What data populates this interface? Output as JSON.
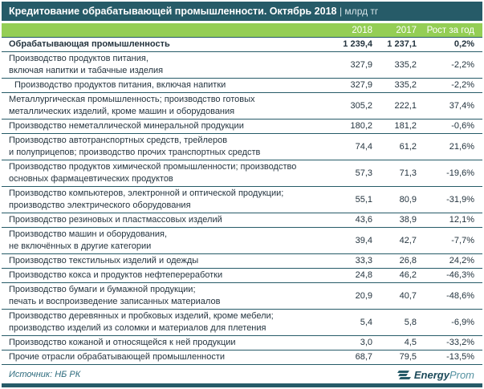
{
  "header": {
    "title": "Кредитование обрабатывающей промышленности. Октябрь 2018",
    "unit_suffix": "|  млрд тг"
  },
  "chart_data": {
    "type": "table",
    "title": "Кредитование обрабатывающей промышленности. Октябрь 2018",
    "unit": "млрд тг",
    "columns": [
      "2018",
      "2017",
      "Рост за год"
    ],
    "rows": [
      {
        "name": "Обрабатывающая промышленность",
        "bold": true,
        "indent": false,
        "v2018": "1 239,4",
        "v2017": "1 237,1",
        "growth": "0,2%"
      },
      {
        "name": "Производство продуктов питания,\nвключая напитки и табачные изделия",
        "bold": false,
        "indent": false,
        "v2018": "327,9",
        "v2017": "335,2",
        "growth": "-2,2%"
      },
      {
        "name": "Производство продуктов питания, включая напитки",
        "bold": false,
        "indent": true,
        "v2018": "327,9",
        "v2017": "335,2",
        "growth": "-2,2%"
      },
      {
        "name": "Металлургическая промышленность; производство готовых\nметаллических изделий, кроме машин и оборудования",
        "bold": false,
        "indent": false,
        "v2018": "305,2",
        "v2017": "222,1",
        "growth": "37,4%"
      },
      {
        "name": "Производство неметаллической минеральной продукции",
        "bold": false,
        "indent": false,
        "v2018": "180,2",
        "v2017": "181,2",
        "growth": "-0,6%"
      },
      {
        "name": "Производство автотранспортных средств, трейлеров\nи полуприцепов; производство прочих транспортных средств",
        "bold": false,
        "indent": false,
        "v2018": "74,4",
        "v2017": "61,2",
        "growth": "21,6%"
      },
      {
        "name": "Производство продуктов химической промышленности; производство\nосновных фармацевтических продуктов",
        "bold": false,
        "indent": false,
        "v2018": "57,3",
        "v2017": "71,3",
        "growth": "-19,6%"
      },
      {
        "name": "Производство компьютеров, электронной и оптической продукции;\nпроизводство электрического оборудования",
        "bold": false,
        "indent": false,
        "v2018": "55,1",
        "v2017": "80,9",
        "growth": "-31,9%"
      },
      {
        "name": "Производство резиновых и пластмассовых изделий",
        "bold": false,
        "indent": false,
        "v2018": "43,6",
        "v2017": "38,9",
        "growth": "12,1%"
      },
      {
        "name": "Производство машин и оборудования,\nне включённых в другие категории",
        "bold": false,
        "indent": false,
        "v2018": "39,4",
        "v2017": "42,7",
        "growth": "-7,7%"
      },
      {
        "name": "Производство текстильных изделий и одежды",
        "bold": false,
        "indent": false,
        "v2018": "33,3",
        "v2017": "26,8",
        "growth": "24,2%"
      },
      {
        "name": "Производство кокса и продуктов нефтепереработки",
        "bold": false,
        "indent": false,
        "v2018": "24,8",
        "v2017": "46,2",
        "growth": "-46,3%"
      },
      {
        "name": "Производство бумаги и бумажной продукции;\nпечать и воспроизведение записанных материалов",
        "bold": false,
        "indent": false,
        "v2018": "20,9",
        "v2017": "40,7",
        "growth": "-48,6%"
      },
      {
        "name": "Производство деревянных и пробковых изделий, кроме мебели;\nпроизводство изделий из соломки и материалов для плетения",
        "bold": false,
        "indent": false,
        "v2018": "5,4",
        "v2017": "5,8",
        "growth": "-6,9%"
      },
      {
        "name": "Производство кожаной и относящейся к ней продукции",
        "bold": false,
        "indent": false,
        "v2018": "3,0",
        "v2017": "4,5",
        "growth": "-33,2%"
      },
      {
        "name": "Прочие отрасли обрабатывающей промышленности",
        "bold": false,
        "indent": false,
        "v2018": "68,7",
        "v2017": "79,5",
        "growth": "-13,5%"
      }
    ]
  },
  "footer": {
    "source": "Источник: НБ РК",
    "logo_bold": "Energy",
    "logo_light": "Prom"
  },
  "colors": {
    "teal": "#265b68",
    "green": "#94ce55",
    "text": "#24343f"
  }
}
